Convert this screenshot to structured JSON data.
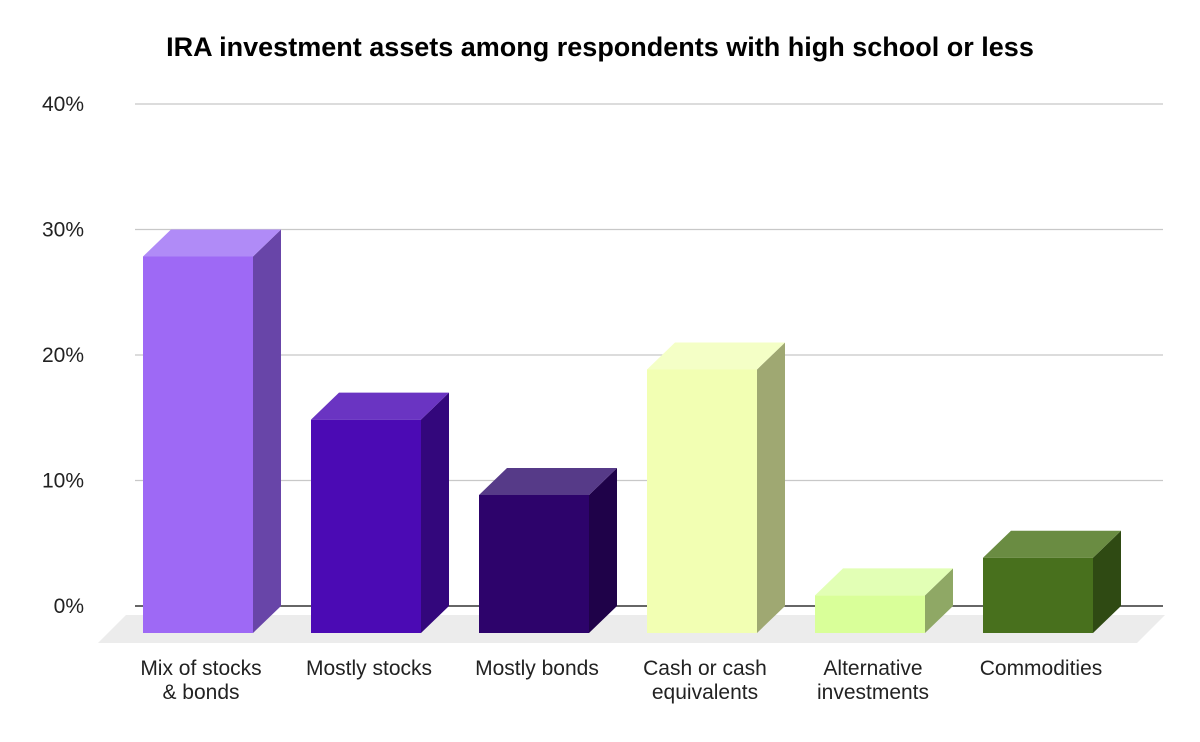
{
  "chart_data": {
    "type": "bar",
    "title": "IRA investment assets among respondents with high school or less",
    "xlabel": "",
    "ylabel": "",
    "ylim": [
      0,
      40
    ],
    "yticks": [
      "0%",
      "10%",
      "20%",
      "30%",
      "40%"
    ],
    "grid": true,
    "style": "3d",
    "categories": [
      [
        "Mix of stocks",
        "& bonds"
      ],
      [
        "Mostly stocks"
      ],
      [
        "Mostly bonds"
      ],
      [
        "Cash or cash",
        "equivalents"
      ],
      [
        "Alternative",
        "investments"
      ],
      [
        "Commodities"
      ]
    ],
    "values": [
      30,
      17,
      11,
      21,
      3,
      6
    ],
    "colors": [
      {
        "front": "#9e69f5",
        "top": "#b08bf7",
        "side": "#6845a8"
      },
      {
        "front": "#4b0ab4",
        "top": "#6a34c2",
        "side": "#33077c"
      },
      {
        "front": "#2d036b",
        "top": "#563a88",
        "side": "#1f0249"
      },
      {
        "front": "#f2ffb3",
        "top": "#f4ffc6",
        "side": "#9fa872"
      },
      {
        "front": "#d9ff99",
        "top": "#e2ffb5",
        "side": "#8fa865"
      },
      {
        "front": "#48701d",
        "top": "#6a8c42",
        "side": "#2f4a13"
      }
    ]
  }
}
